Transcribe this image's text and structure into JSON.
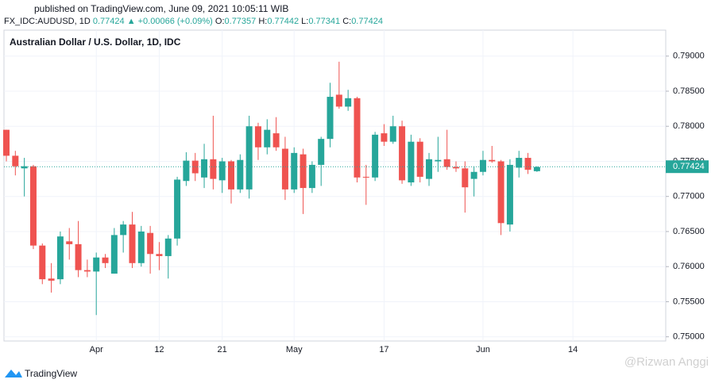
{
  "header": {
    "published": "published on TradingView.com, June 09, 2021 10:05:11 WIB",
    "symbol": "FX_IDC:AUDUSD, 1D",
    "last": "0.77424",
    "change": "▲ +0.00066 (+0.09%)",
    "quote": [
      {
        "label": "O:",
        "value": "0.77357"
      },
      {
        "label": "H:",
        "value": "0.77442"
      },
      {
        "label": "L:",
        "value": "0.77341"
      },
      {
        "label": "C:",
        "value": "0.77424"
      }
    ]
  },
  "chart_data": {
    "type": "candlestick",
    "title": "Australian Dollar / U.S. Dollar, 1D, IDC",
    "categories": [
      null,
      null,
      null,
      null,
      null,
      null,
      null,
      null,
      null,
      null,
      "Apr",
      null,
      null,
      null,
      null,
      null,
      null,
      "12",
      null,
      null,
      null,
      null,
      null,
      null,
      "21",
      null,
      null,
      null,
      null,
      null,
      null,
      null,
      "May",
      null,
      null,
      null,
      null,
      null,
      null,
      null,
      null,
      null,
      "17",
      null,
      null,
      null,
      null,
      null,
      null,
      null,
      null,
      null,
      null,
      "Jun",
      null,
      null,
      null,
      null,
      null,
      null,
      null,
      null,
      null,
      "14"
    ],
    "open": [
      0.7795,
      0.7758,
      0.774,
      0.7743,
      0.763,
      0.7583,
      0.7582,
      0.7636,
      0.7632,
      0.7595,
      0.7593,
      0.7613,
      0.759,
      0.7645,
      0.766,
      0.7605,
      0.7648,
      0.7618,
      0.7615,
      0.764,
      0.7722,
      0.7751,
      0.7727,
      0.7753,
      0.7723,
      0.775,
      0.771,
      0.771,
      0.78,
      0.777,
      0.779,
      0.7768,
      0.771,
      0.776,
      0.7712,
      0.7745,
      0.7782,
      0.7845,
      0.7828,
      0.784,
      0.7728,
      0.7727,
      0.779,
      0.7778,
      0.78,
      0.772,
      0.7778,
      0.7725,
      0.775,
      0.7753,
      0.7742,
      0.774,
      0.7725,
      0.7735,
      0.7752,
      0.775,
      0.766,
      0.7741,
      0.7755,
      0.7736,
      null,
      null,
      null,
      null
    ],
    "high": [
      0.7795,
      0.7765,
      0.7755,
      0.7745,
      0.7633,
      0.7605,
      0.765,
      0.7655,
      0.7665,
      0.761,
      0.762,
      0.7618,
      0.7655,
      0.7665,
      0.7678,
      0.7658,
      0.7658,
      0.7635,
      0.7645,
      0.7728,
      0.7763,
      0.7762,
      0.7775,
      0.7815,
      0.7755,
      0.7752,
      0.776,
      0.7815,
      0.7805,
      0.781,
      0.7813,
      0.7785,
      0.777,
      0.7768,
      0.775,
      0.7785,
      0.7862,
      0.7892,
      0.7852,
      0.7842,
      0.7745,
      0.7792,
      0.7803,
      0.7815,
      0.7808,
      0.7788,
      0.7783,
      0.7762,
      0.7785,
      0.7795,
      0.775,
      0.775,
      0.7743,
      0.7765,
      0.7772,
      0.7752,
      0.7753,
      0.7765,
      0.7762,
      0.7743,
      null,
      null,
      null,
      null
    ],
    "low": [
      0.775,
      0.773,
      0.77,
      0.7625,
      0.7575,
      0.7563,
      0.7575,
      0.761,
      0.7585,
      0.7585,
      0.7531,
      0.7598,
      0.759,
      0.762,
      0.7598,
      0.76,
      0.759,
      0.7595,
      0.7583,
      0.763,
      0.7715,
      0.7722,
      0.7712,
      0.771,
      0.7705,
      0.769,
      0.7705,
      0.7697,
      0.7752,
      0.776,
      0.7765,
      0.7695,
      0.7705,
      0.7675,
      0.7705,
      0.7715,
      0.777,
      0.7825,
      0.7822,
      0.772,
      0.7688,
      0.7722,
      0.7772,
      0.7775,
      0.7718,
      0.7715,
      0.772,
      0.7715,
      0.7735,
      0.7738,
      0.7735,
      0.7677,
      0.77,
      0.773,
      0.7748,
      0.7645,
      0.765,
      0.7727,
      0.7732,
      0.7735,
      null,
      null,
      null,
      null
    ],
    "close": [
      0.7758,
      0.7743,
      0.7743,
      0.763,
      0.7582,
      0.758,
      0.7643,
      0.7632,
      0.7595,
      0.7593,
      0.7613,
      0.7605,
      0.7645,
      0.766,
      0.7605,
      0.765,
      0.7618,
      0.7615,
      0.764,
      0.7724,
      0.7751,
      0.7733,
      0.7753,
      0.7725,
      0.775,
      0.771,
      0.7752,
      0.78,
      0.777,
      0.7795,
      0.777,
      0.771,
      0.7762,
      0.7712,
      0.7745,
      0.7782,
      0.7842,
      0.7828,
      0.784,
      0.7727,
      0.7727,
      0.7788,
      0.7778,
      0.78,
      0.7723,
      0.7778,
      0.7728,
      0.7753,
      0.7752,
      0.7742,
      0.774,
      0.7713,
      0.7735,
      0.7752,
      0.775,
      0.7662,
      0.7745,
      0.7755,
      0.7738,
      0.7742,
      null,
      null,
      null,
      null
    ],
    "up_color": "#26a69a",
    "down_color": "#ef5350",
    "last_price": 0.77424,
    "ylim": [
      0.7494,
      0.7937
    ],
    "yticks": [
      {
        "value": 0.75,
        "label": "0.75000"
      },
      {
        "value": 0.755,
        "label": "0.75500"
      },
      {
        "value": 0.76,
        "label": "0.76000"
      },
      {
        "value": 0.765,
        "label": "0.76500"
      },
      {
        "value": 0.77,
        "label": "0.77000"
      },
      {
        "value": 0.775,
        "label": "0.77500"
      },
      {
        "value": 0.78,
        "label": "0.78000"
      },
      {
        "value": 0.785,
        "label": "0.78500"
      },
      {
        "value": 0.79,
        "label": "0.79000"
      }
    ],
    "grid": true
  },
  "footer": {
    "brand": "TradingView",
    "watermark": "@Rizwan Anggi"
  }
}
